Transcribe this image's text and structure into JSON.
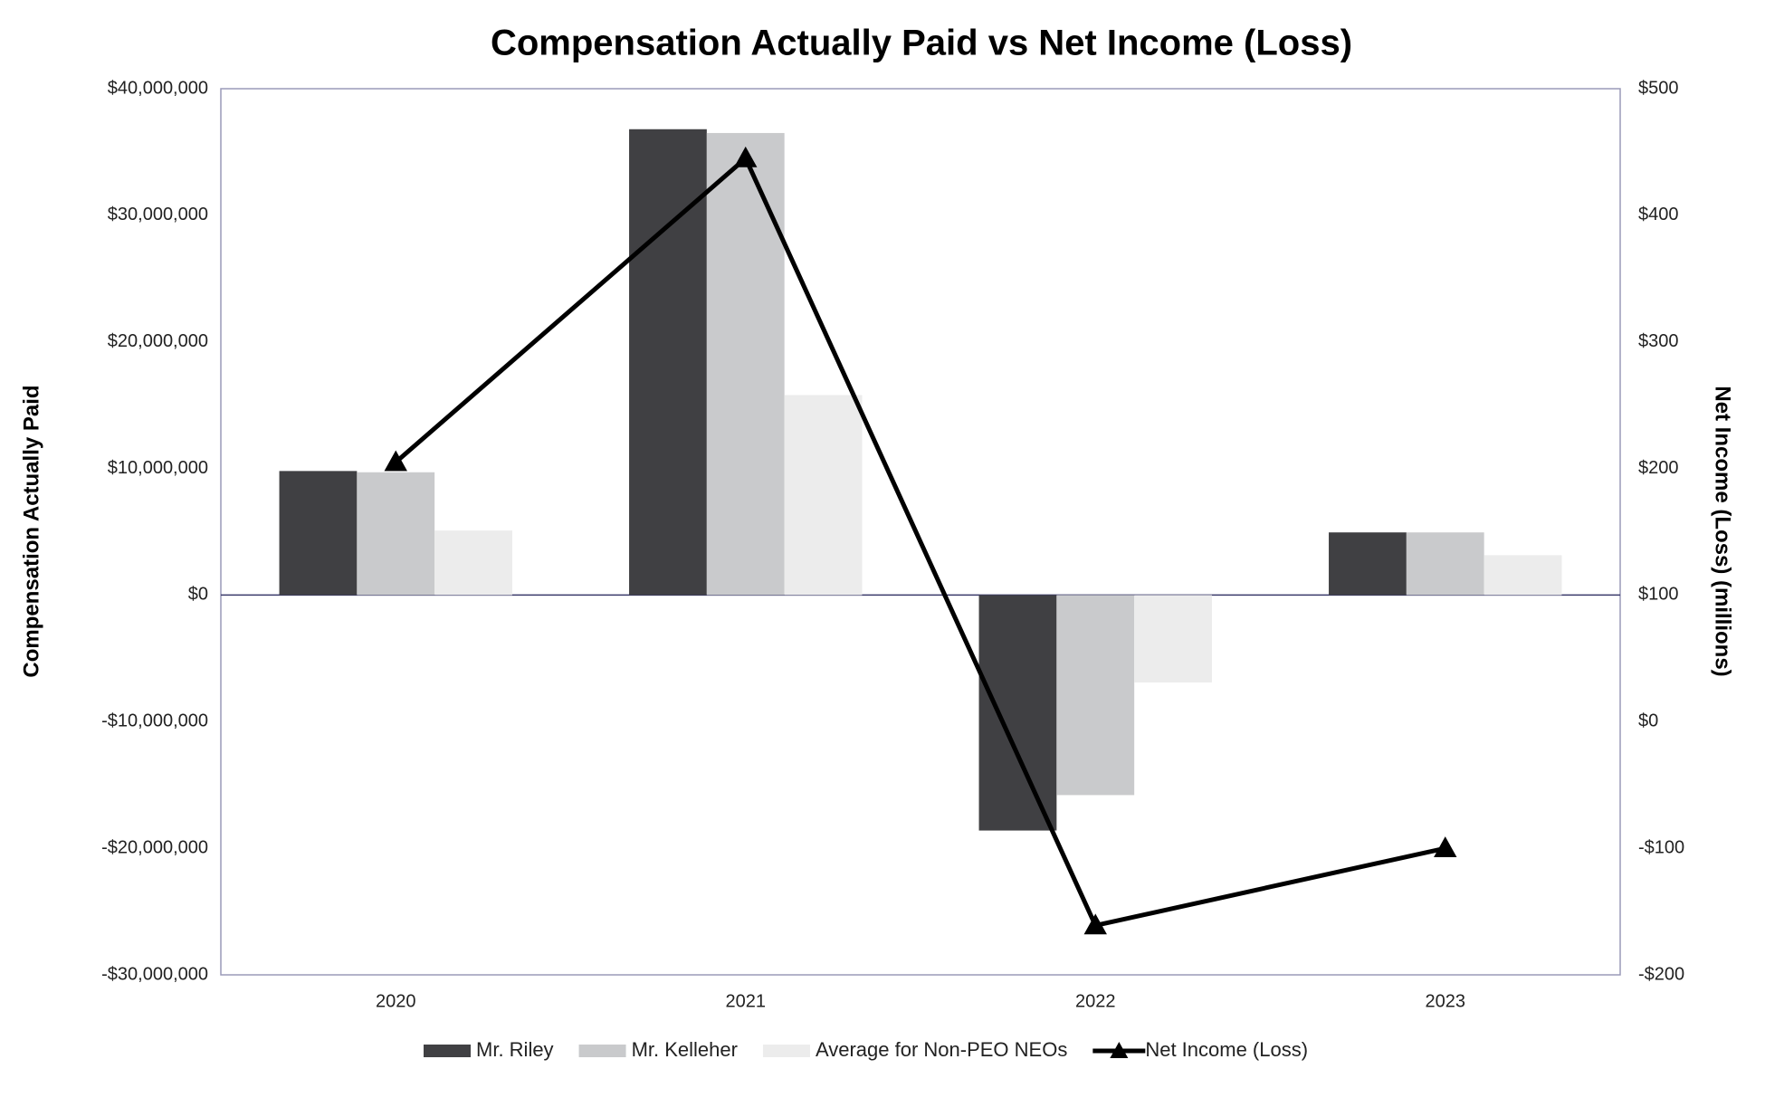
{
  "chart_data": {
    "type": "bar",
    "title": "Compensation Actually Paid vs Net Income (Loss)",
    "y_label": "Compensation Actually Paid",
    "y2_label": "Net Income (Loss) (millions)",
    "categories": [
      "2020",
      "2021",
      "2022",
      "2023"
    ],
    "series": [
      {
        "name": "Mr. Riley",
        "color": "#404043",
        "values": [
          9800000,
          36800000,
          -18600000,
          4950000
        ]
      },
      {
        "name": "Mr. Kelleher",
        "color": "#c9cacc",
        "values": [
          9700000,
          36500000,
          -15800000,
          4950000
        ]
      },
      {
        "name": "Average for Non-PEO NEOs",
        "color": "#ececec",
        "values": [
          5100000,
          15800000,
          -6900000,
          3150000
        ]
      },
      {
        "name": "Net Income (Loss)",
        "color": "#000000",
        "type": "line",
        "axis": "y2",
        "values": [
          205,
          445,
          -161,
          -100
        ]
      }
    ],
    "ylim": [
      -30000000,
      40000000
    ],
    "yticks": [
      {
        "value": 40000000,
        "label": "$40,000,000"
      },
      {
        "value": 30000000,
        "label": "$30,000,000"
      },
      {
        "value": 20000000,
        "label": "$20,000,000"
      },
      {
        "value": 10000000,
        "label": "$10,000,000"
      },
      {
        "value": 0,
        "label": "$0"
      },
      {
        "value": -10000000,
        "label": "-$10,000,000"
      },
      {
        "value": -20000000,
        "label": "-$20,000,000"
      },
      {
        "value": -30000000,
        "label": "-$30,000,000"
      }
    ],
    "y2lim": [
      -200,
      500
    ],
    "y2ticks": [
      {
        "value": 500,
        "label": "$500"
      },
      {
        "value": 400,
        "label": "$400"
      },
      {
        "value": 300,
        "label": "$300"
      },
      {
        "value": 200,
        "label": "$200"
      },
      {
        "value": 100,
        "label": "$100"
      },
      {
        "value": 0,
        "label": "$0"
      },
      {
        "value": -100,
        "label": "-$100"
      },
      {
        "value": -200,
        "label": "-$200"
      }
    ],
    "legend": "bottom"
  }
}
